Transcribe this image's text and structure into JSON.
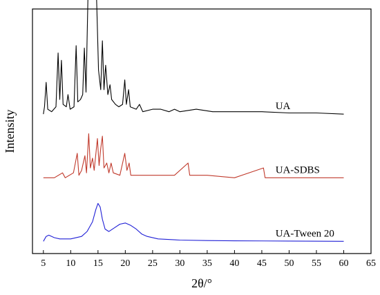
{
  "chart_data": {
    "type": "line",
    "xlabel": "2θ/°",
    "ylabel": "Intensity",
    "xlim": [
      3,
      65
    ],
    "x_ticks": [
      5,
      10,
      15,
      20,
      25,
      30,
      35,
      40,
      45,
      50,
      55,
      60,
      65
    ],
    "y_ticks_shown": false,
    "grid": false,
    "legend": "inline labels at right of each trace",
    "series": [
      {
        "name": "UA",
        "color": "#000000",
        "offset": 0.57,
        "points": [
          [
            5,
            0
          ],
          [
            5.2,
            0.03
          ],
          [
            5.5,
            0.13
          ],
          [
            5.8,
            0.02
          ],
          [
            6.5,
            0.01
          ],
          [
            7.3,
            0.03
          ],
          [
            7.7,
            0.25
          ],
          [
            8.0,
            0.06
          ],
          [
            8.3,
            0.22
          ],
          [
            8.6,
            0.04
          ],
          [
            9.2,
            0.03
          ],
          [
            9.5,
            0.08
          ],
          [
            9.9,
            0.02
          ],
          [
            10.6,
            0.03
          ],
          [
            11.0,
            0.28
          ],
          [
            11.3,
            0.05
          ],
          [
            11.8,
            0.06
          ],
          [
            12.2,
            0.08
          ],
          [
            12.5,
            0.27
          ],
          [
            12.8,
            0.09
          ],
          [
            13.2,
            0.52
          ],
          [
            13.5,
            0.48
          ],
          [
            13.8,
            0.72
          ],
          [
            14.0,
            0.6
          ],
          [
            14.2,
            0.88
          ],
          [
            14.4,
            0.62
          ],
          [
            14.6,
            0.58
          ],
          [
            14.8,
            0.42
          ],
          [
            15.1,
            0.18
          ],
          [
            15.5,
            0.1
          ],
          [
            15.8,
            0.3
          ],
          [
            16.1,
            0.1
          ],
          [
            16.4,
            0.2
          ],
          [
            16.8,
            0.08
          ],
          [
            17.2,
            0.12
          ],
          [
            17.5,
            0.06
          ],
          [
            18.2,
            0.04
          ],
          [
            18.8,
            0.03
          ],
          [
            19.5,
            0.04
          ],
          [
            19.9,
            0.14
          ],
          [
            20.2,
            0.04
          ],
          [
            20.6,
            0.1
          ],
          [
            20.9,
            0.03
          ],
          [
            22.0,
            0.02
          ],
          [
            22.6,
            0.04
          ],
          [
            23.2,
            0.01
          ],
          [
            25.0,
            0.02
          ],
          [
            26.5,
            0.02
          ],
          [
            28.0,
            0.01
          ],
          [
            29.0,
            0.02
          ],
          [
            30.0,
            0.01
          ],
          [
            33.0,
            0.02
          ],
          [
            36.0,
            0.01
          ],
          [
            39.0,
            0.01
          ],
          [
            42.0,
            0.01
          ],
          [
            45.0,
            0.01
          ],
          [
            50.0,
            0.005
          ],
          [
            55.0,
            0.005
          ],
          [
            60.0,
            0.0
          ]
        ]
      },
      {
        "name": "UA-SDBS",
        "color": "#c0392b",
        "offset": 0.31,
        "points": [
          [
            5,
            0
          ],
          [
            7,
            0.0
          ],
          [
            8.5,
            0.02
          ],
          [
            9.0,
            0.0
          ],
          [
            10.5,
            0.02
          ],
          [
            11.2,
            0.1
          ],
          [
            11.5,
            0.01
          ],
          [
            12.0,
            0.03
          ],
          [
            12.6,
            0.09
          ],
          [
            12.9,
            0.02
          ],
          [
            13.3,
            0.18
          ],
          [
            13.6,
            0.04
          ],
          [
            14.0,
            0.08
          ],
          [
            14.3,
            0.03
          ],
          [
            14.9,
            0.16
          ],
          [
            15.2,
            0.05
          ],
          [
            15.5,
            0.12
          ],
          [
            15.8,
            0.17
          ],
          [
            16.1,
            0.04
          ],
          [
            16.6,
            0.06
          ],
          [
            17.0,
            0.02
          ],
          [
            17.4,
            0.06
          ],
          [
            17.8,
            0.02
          ],
          [
            19.0,
            0.01
          ],
          [
            19.9,
            0.1
          ],
          [
            20.3,
            0.03
          ],
          [
            20.7,
            0.06
          ],
          [
            21.0,
            0.01
          ],
          [
            23.0,
            0.01
          ],
          [
            26.0,
            0.01
          ],
          [
            29.0,
            0.01
          ],
          [
            31.5,
            0.06
          ],
          [
            31.8,
            0.01
          ],
          [
            35.0,
            0.01
          ],
          [
            40.0,
            0.0
          ],
          [
            45.3,
            0.04
          ],
          [
            45.6,
            0.0
          ],
          [
            50.0,
            0.0
          ],
          [
            55.0,
            0.0
          ],
          [
            60.0,
            0.0
          ]
        ]
      },
      {
        "name": "UA-Tween 20",
        "color": "#1f1fd6",
        "offset": 0.05,
        "points": [
          [
            5,
            0.0
          ],
          [
            5.5,
            0.02
          ],
          [
            6.0,
            0.025
          ],
          [
            7.0,
            0.015
          ],
          [
            8.0,
            0.01
          ],
          [
            10.0,
            0.01
          ],
          [
            12.0,
            0.02
          ],
          [
            13.0,
            0.04
          ],
          [
            14.0,
            0.08
          ],
          [
            14.6,
            0.13
          ],
          [
            15.0,
            0.155
          ],
          [
            15.4,
            0.14
          ],
          [
            15.8,
            0.09
          ],
          [
            16.3,
            0.05
          ],
          [
            17.0,
            0.04
          ],
          [
            18.0,
            0.055
          ],
          [
            19.0,
            0.07
          ],
          [
            20.0,
            0.075
          ],
          [
            21.0,
            0.065
          ],
          [
            22.0,
            0.05
          ],
          [
            23.0,
            0.03
          ],
          [
            24.0,
            0.02
          ],
          [
            26.0,
            0.01
          ],
          [
            30.0,
            0.005
          ],
          [
            35.0,
            0.003
          ],
          [
            40.0,
            0.002
          ],
          [
            50.0,
            0.001
          ],
          [
            60.0,
            0.0
          ]
        ]
      }
    ]
  }
}
